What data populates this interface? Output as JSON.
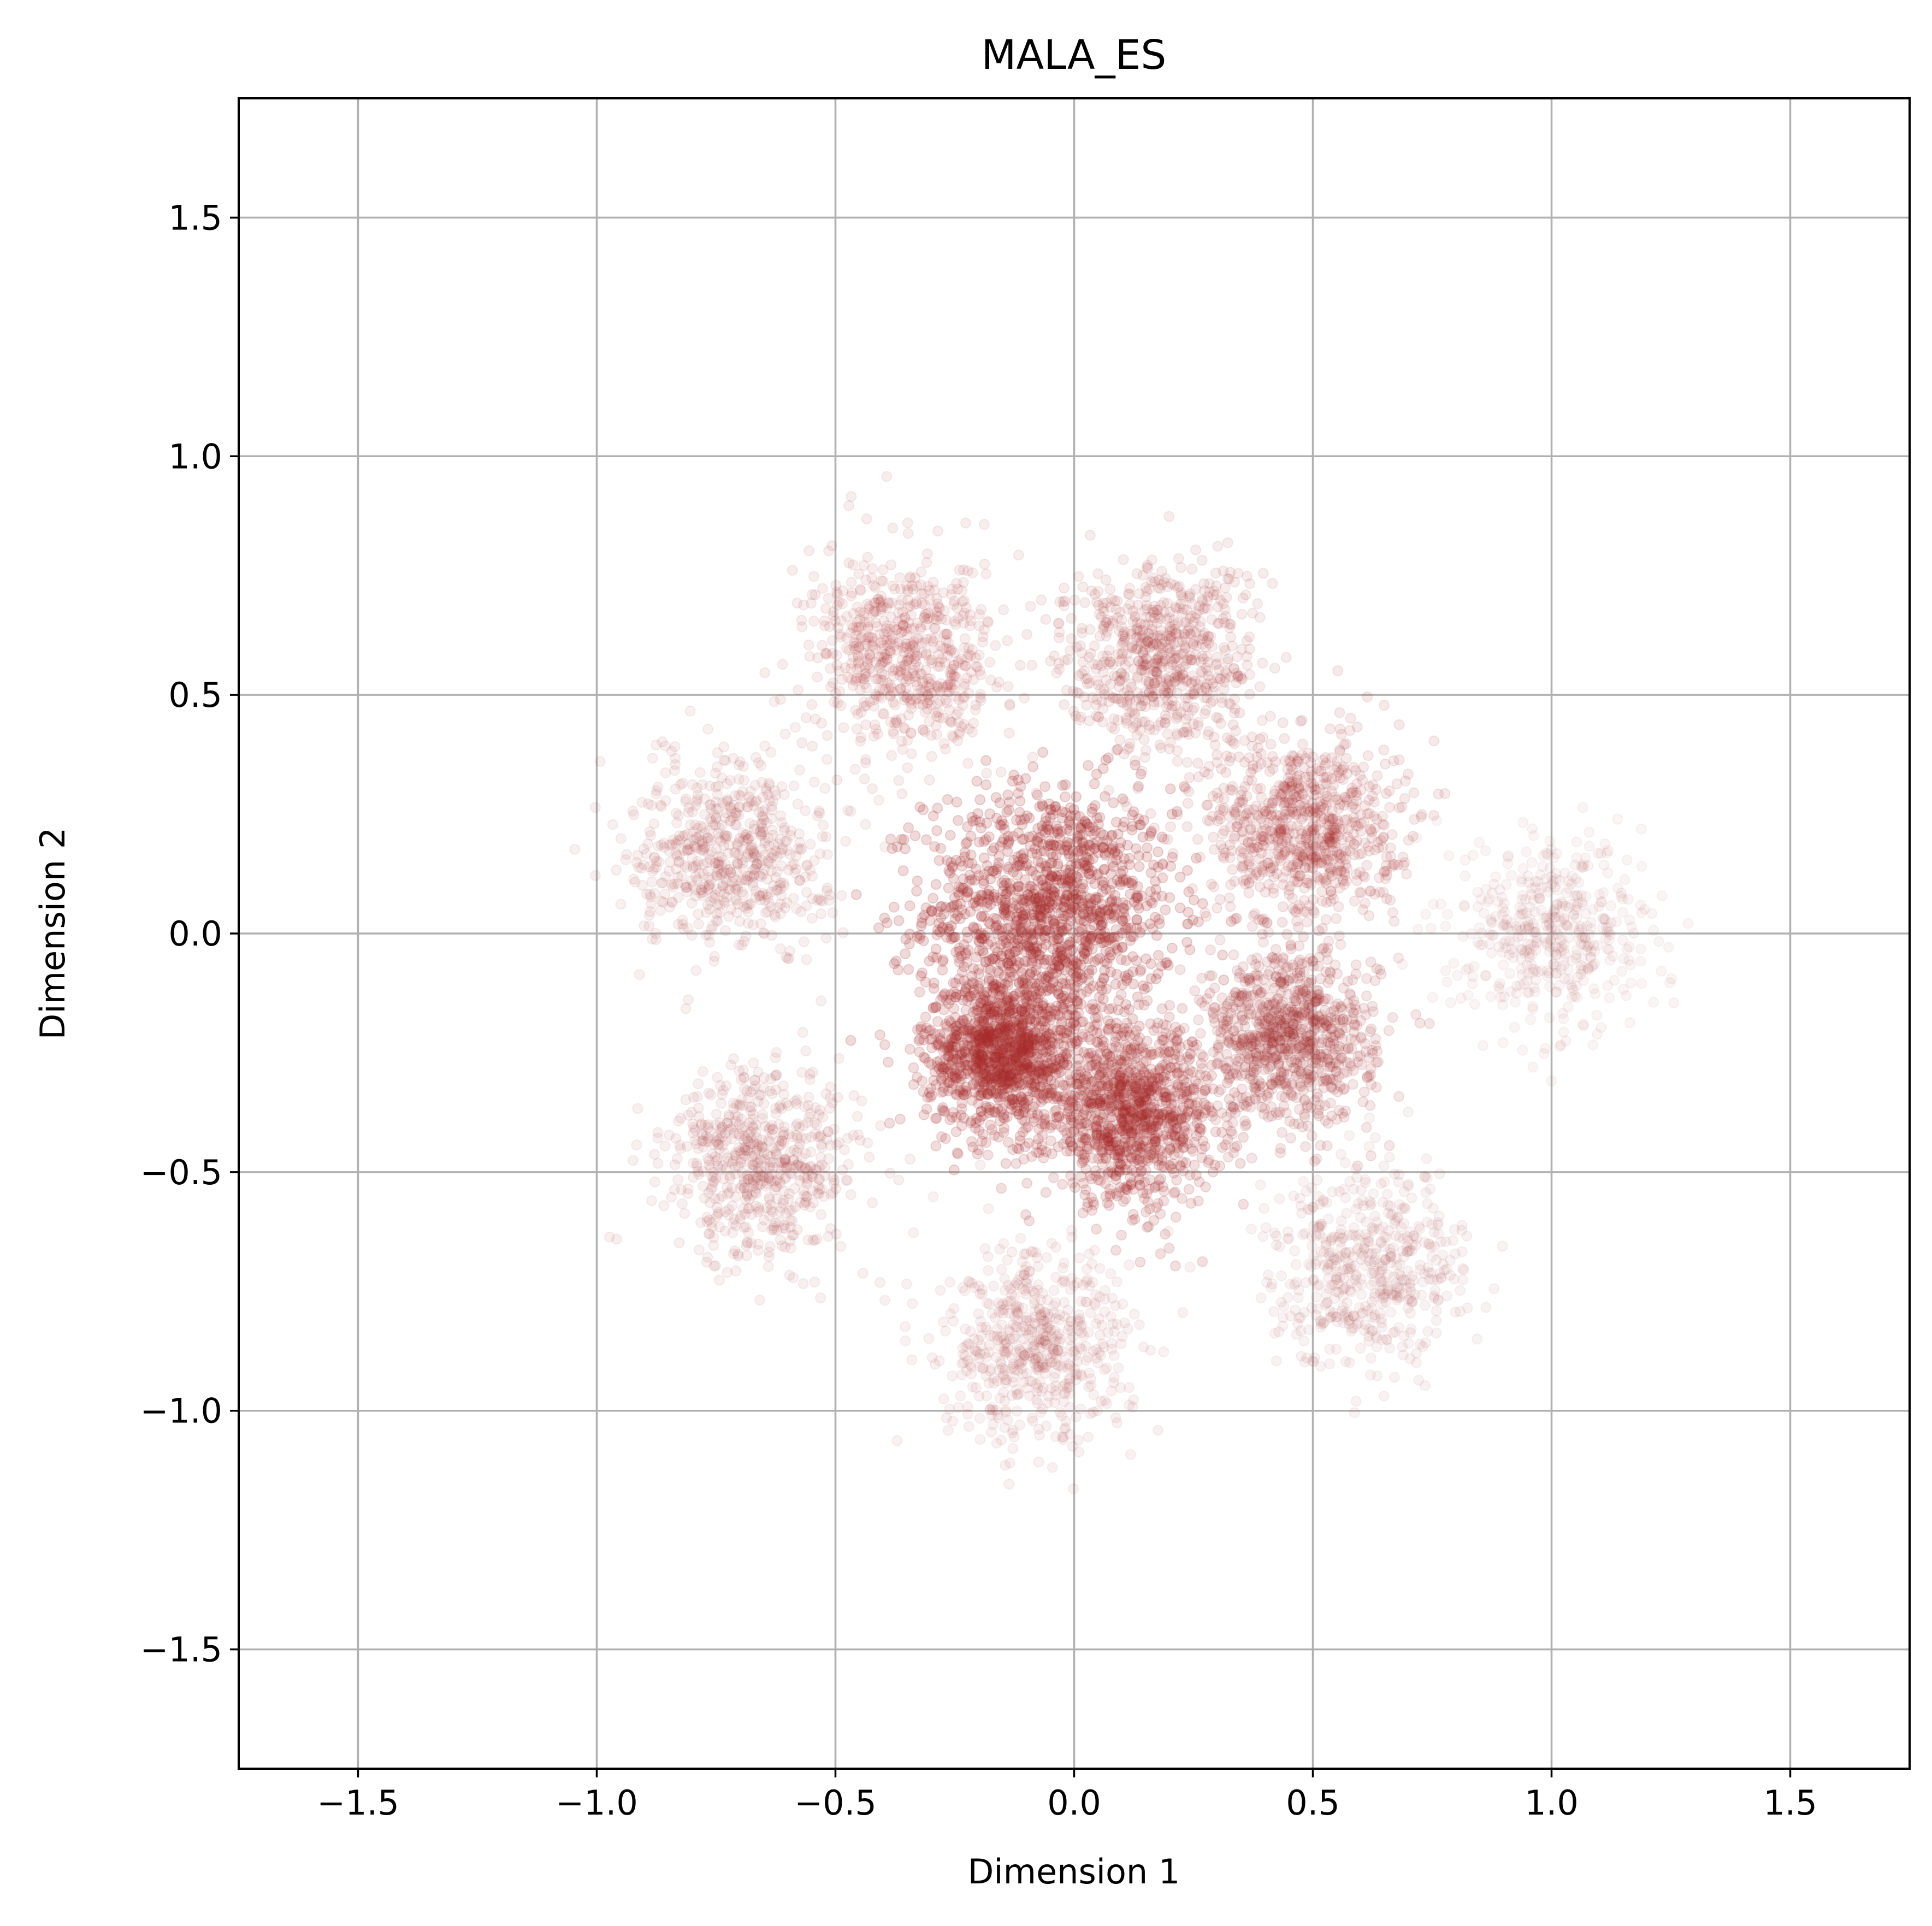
{
  "chart_data": {
    "type": "scatter",
    "title": "MALA_ES",
    "xlabel": "Dimension 1",
    "ylabel": "Dimension 2",
    "xlim": [
      -1.75,
      1.75
    ],
    "ylim": [
      -1.75,
      1.75
    ],
    "xticks": [
      -1.5,
      -1.0,
      -0.5,
      0.0,
      0.5,
      1.0,
      1.5
    ],
    "yticks": [
      -1.5,
      -1.0,
      -0.5,
      0.0,
      0.5,
      1.0,
      1.5
    ],
    "xtick_labels": [
      "−1.5",
      "−1.0",
      "−0.5",
      "0.0",
      "0.5",
      "1.0",
      "1.5"
    ],
    "ytick_labels": [
      "−1.5",
      "−1.0",
      "−0.5",
      "0.0",
      "0.5",
      "1.0",
      "1.5"
    ],
    "grid": true,
    "marker_color": "#a52a2a",
    "series": [
      {
        "clusters": [
          {
            "center": [
              -0.05,
              0.05
            ],
            "spread": 0.13,
            "density": 1.0
          },
          {
            "center": [
              -0.15,
              -0.25
            ],
            "spread": 0.08,
            "density": 0.85
          },
          {
            "center": [
              0.12,
              -0.38
            ],
            "spread": 0.09,
            "density": 0.75
          },
          {
            "center": [
              0.45,
              -0.22
            ],
            "spread": 0.09,
            "density": 0.55
          },
          {
            "center": [
              0.48,
              0.22
            ],
            "spread": 0.1,
            "density": 0.45
          },
          {
            "center": [
              0.18,
              0.58
            ],
            "spread": 0.1,
            "density": 0.35
          },
          {
            "center": [
              -0.35,
              0.58
            ],
            "spread": 0.1,
            "density": 0.3
          },
          {
            "center": [
              -0.72,
              0.17
            ],
            "spread": 0.1,
            "density": 0.25
          },
          {
            "center": [
              -0.65,
              -0.48
            ],
            "spread": 0.1,
            "density": 0.25
          },
          {
            "center": [
              -0.08,
              -0.87
            ],
            "spread": 0.1,
            "density": 0.2
          },
          {
            "center": [
              0.62,
              -0.7
            ],
            "spread": 0.1,
            "density": 0.15
          },
          {
            "center": [
              1.0,
              0.0
            ],
            "spread": 0.1,
            "density": 0.08
          }
        ]
      }
    ]
  }
}
